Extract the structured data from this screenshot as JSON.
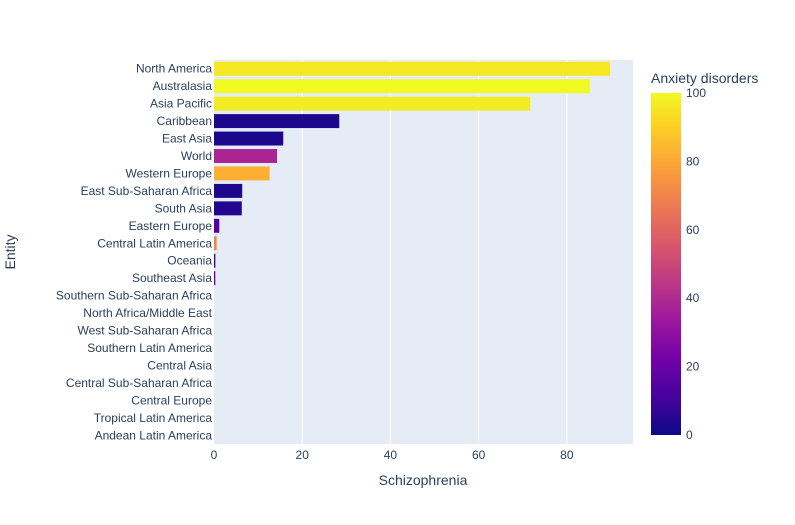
{
  "chart_data": {
    "type": "bar",
    "orientation": "horizontal",
    "xlabel": "Schizophrenia",
    "ylabel": "Entity",
    "xlim": [
      0,
      95
    ],
    "x_ticks": [
      0,
      20,
      40,
      60,
      80
    ],
    "plot_background": "#e5ecf6",
    "grid": true,
    "categories": [
      "North America",
      "Australasia",
      "Asia Pacific",
      "Caribbean",
      "East Asia",
      "World",
      "Western Europe",
      "East Sub-Saharan Africa",
      "South Asia",
      "Eastern Europe",
      "Central Latin America",
      "Oceania",
      "Southeast Asia",
      "Southern Sub-Saharan Africa",
      "North Africa/Middle East",
      "West Sub-Saharan Africa",
      "Southern Latin America",
      "Central Asia",
      "Central Sub-Saharan Africa",
      "Central Europe",
      "Tropical Latin America",
      "Andean Latin America"
    ],
    "values": [
      89.8,
      85.2,
      71.7,
      28.4,
      15.7,
      14.3,
      12.6,
      6.4,
      6.3,
      1.2,
      0.6,
      0.3,
      0.3,
      0,
      0,
      0,
      0,
      0,
      0,
      0,
      0,
      0
    ],
    "color_values": [
      96,
      100,
      97,
      3,
      3,
      38,
      82,
      3,
      4,
      15,
      70,
      5,
      20,
      0,
      0,
      0,
      0,
      0,
      0,
      0,
      0,
      0
    ],
    "colorbar": {
      "title": "Anxiety disorders",
      "range": [
        0,
        100
      ],
      "ticks": [
        0,
        20,
        40,
        60,
        80,
        100
      ],
      "colorscale": [
        "#0d0887",
        "#46039f",
        "#7201a8",
        "#9c179e",
        "#bd3786",
        "#d8576b",
        "#ed7953",
        "#fb9f3a",
        "#fdca26",
        "#f0f921"
      ]
    }
  }
}
